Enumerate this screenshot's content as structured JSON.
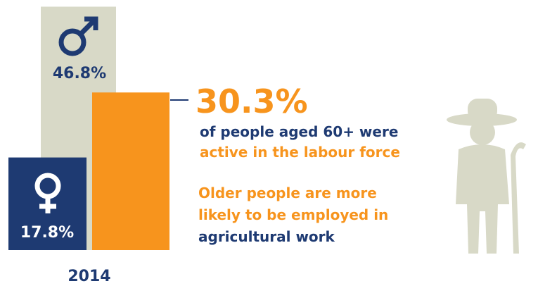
{
  "chart_data": {
    "type": "bar",
    "categories": [
      null,
      null,
      null
    ],
    "values": [
      46.8,
      17.8,
      30.3
    ],
    "value_labels": [
      "46.8%",
      "17.8%",
      "30.3%"
    ],
    "colors": [
      "#d8d9c7",
      "#1e3a72",
      "#f7941d"
    ],
    "ylim": [
      0,
      47
    ],
    "xlabel": "2014",
    "annotations": [
      {
        "text": "of people aged 60+ were",
        "color": "#1e3a72"
      },
      {
        "text": "active in the labour force",
        "color": "#f7941d"
      },
      {
        "text": "Older people are more",
        "color": "#f7941d"
      },
      {
        "text": "likely to be employed in",
        "color": "#f7941d"
      },
      {
        "text": "agricultural work",
        "color": "#1e3a72"
      }
    ]
  }
}
